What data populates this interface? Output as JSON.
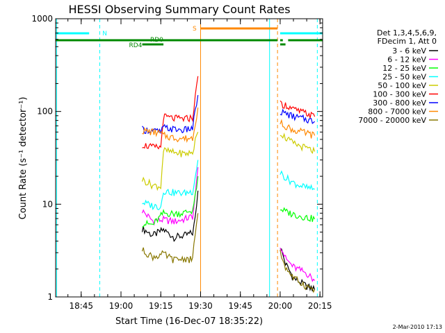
{
  "chart_data": {
    "type": "line",
    "title": "HESSI Observing Summary Count Rates",
    "xlabel": "Start Time (16-Dec-07 18:35:22)",
    "ylabel": "Count Rate (s⁻¹ detector⁻¹)",
    "yscale": "log",
    "ylim": [
      1,
      1000
    ],
    "xlim": [
      "18:35:22",
      "20:16:00"
    ],
    "x_ticks": [
      "18:45",
      "19:00",
      "19:15",
      "19:30",
      "19:45",
      "20:00",
      "20:15"
    ],
    "y_ticks": [
      "1",
      "10",
      "100",
      "1000"
    ],
    "grid": false,
    "legend_position": "right",
    "legend_header": [
      "Det 1,3,4,5,6,9,",
      "FDecim 1, Att 0"
    ],
    "series": [
      {
        "name": "3 - 6 keV",
        "color": "#000000",
        "x": [
          "19:08",
          "19:12",
          "19:16",
          "19:20",
          "19:24",
          "19:27",
          "19:28",
          "19:29",
          "20:00",
          "20:02",
          "20:05",
          "20:10",
          "20:13"
        ],
        "y": [
          5.5,
          4.6,
          5.3,
          4.4,
          4.6,
          4.9,
          7,
          14,
          3.5,
          2.3,
          1.6,
          1.3,
          1.2
        ]
      },
      {
        "name": "6 - 12 keV",
        "color": "#ff00ff",
        "x": [
          "19:08",
          "19:12",
          "19:16",
          "19:20",
          "19:24",
          "19:27",
          "19:28",
          "19:29",
          "20:00",
          "20:02",
          "20:05",
          "20:10",
          "20:13"
        ],
        "y": [
          8.5,
          6.6,
          6.8,
          6.5,
          6.9,
          7.4,
          12,
          25,
          3.7,
          2.6,
          2.1,
          1.8,
          1.5
        ]
      },
      {
        "name": "12 - 25 keV",
        "color": "#00ff00",
        "x": [
          "19:08",
          "19:12",
          "19:16",
          "19:20",
          "19:24",
          "19:27",
          "19:28",
          "19:29",
          "20:00",
          "20:02",
          "20:05",
          "20:10",
          "20:13"
        ],
        "y": [
          6.2,
          6.0,
          8.0,
          7.9,
          8.1,
          8.6,
          12,
          20,
          9.0,
          8.3,
          7.8,
          7.2,
          6.9
        ]
      },
      {
        "name": "25 - 50 keV",
        "color": "#00ffff",
        "x": [
          "19:08",
          "19:12",
          "19:15",
          "19:16",
          "19:20",
          "19:24",
          "19:27",
          "19:28",
          "19:29",
          "20:00",
          "20:02",
          "20:05",
          "20:10",
          "20:13"
        ],
        "y": [
          10.5,
          9.6,
          9.4,
          14,
          13.3,
          13.2,
          13.8,
          20,
          30,
          22,
          19.5,
          17,
          15,
          14.5
        ]
      },
      {
        "name": "50 - 100 keV",
        "color": "#cccc00",
        "x": [
          "19:08",
          "19:12",
          "19:15",
          "19:16",
          "19:20",
          "19:24",
          "19:27",
          "19:28",
          "19:29",
          "20:00",
          "20:02",
          "20:05",
          "20:10",
          "20:13"
        ],
        "y": [
          18.5,
          16,
          15.5,
          38,
          36,
          35,
          36,
          48,
          60,
          60,
          52,
          45,
          40,
          37
        ]
      },
      {
        "name": "100 - 300 keV",
        "color": "#ff0000",
        "x": [
          "19:08",
          "19:12",
          "19:15",
          "19:16",
          "19:20",
          "19:24",
          "19:27",
          "19:28",
          "19:29",
          "20:00",
          "20:02",
          "20:05",
          "20:10",
          "20:13"
        ],
        "y": [
          44,
          41,
          41,
          88,
          84,
          83,
          86,
          140,
          240,
          120,
          118,
          105,
          95,
          88
        ]
      },
      {
        "name": "300 - 800 keV",
        "color": "#0000ff",
        "x": [
          "19:08",
          "19:12",
          "19:15",
          "19:16",
          "19:20",
          "19:24",
          "19:27",
          "19:28",
          "19:29",
          "20:00",
          "20:02",
          "20:05",
          "20:10",
          "20:13"
        ],
        "y": [
          64,
          62,
          60,
          67,
          64,
          63,
          66,
          100,
          150,
          100,
          95,
          88,
          82,
          78
        ]
      },
      {
        "name": "800 - 7000 keV",
        "color": "#ff8800",
        "x": [
          "19:08",
          "19:12",
          "19:15",
          "19:16",
          "19:20",
          "19:24",
          "19:27",
          "19:28",
          "19:29",
          "20:00",
          "20:02",
          "20:05",
          "20:10",
          "20:13"
        ],
        "y": [
          62,
          60,
          58,
          55,
          52,
          51,
          52,
          75,
          110,
          75,
          70,
          63,
          58,
          55
        ]
      },
      {
        "name": "7000 - 20000 keV",
        "color": "#887700",
        "x": [
          "19:08",
          "19:12",
          "19:16",
          "19:20",
          "19:24",
          "19:27",
          "19:28",
          "19:29",
          "20:00",
          "20:02",
          "20:05",
          "20:10",
          "20:13"
        ],
        "y": [
          3.2,
          2.7,
          2.9,
          2.5,
          2.6,
          2.5,
          5,
          8,
          3.0,
          2.1,
          1.6,
          1.3,
          1.2
        ]
      }
    ],
    "flag_bars": [
      {
        "label": "N",
        "color": "#00ffff",
        "segments": [
          [
            "18:35:22",
            "18:48"
          ],
          [
            "20:00",
            "20:16"
          ]
        ]
      },
      {
        "label": "S",
        "color": "#ff8800",
        "segments": [
          [
            "19:30",
            "19:59"
          ]
        ]
      },
      {
        "label": "RD0",
        "color": "#008800",
        "segments": [
          [
            "18:35:22",
            "19:59"
          ],
          [
            "20:00",
            "20:01"
          ],
          [
            "20:03",
            "20:16"
          ]
        ]
      },
      {
        "label": "RD4",
        "color": "#008800",
        "segments": [
          [
            "19:08",
            "19:16"
          ],
          [
            "20:00",
            "20:02"
          ]
        ]
      }
    ],
    "vertical_lines": [
      {
        "x": "18:35:45",
        "color": "#00ffff",
        "style": "solid"
      },
      {
        "x": "18:52",
        "color": "#00ffff",
        "style": "dashed"
      },
      {
        "x": "19:30",
        "color": "#ff8800",
        "style": "solid"
      },
      {
        "x": "19:56",
        "color": "#00ffff",
        "style": "solid"
      },
      {
        "x": "19:59",
        "color": "#ff8800",
        "style": "dashed"
      },
      {
        "x": "20:14",
        "color": "#00ffff",
        "style": "dashed"
      }
    ]
  },
  "footer_timestamp": "2-Mar-2010 17:13"
}
